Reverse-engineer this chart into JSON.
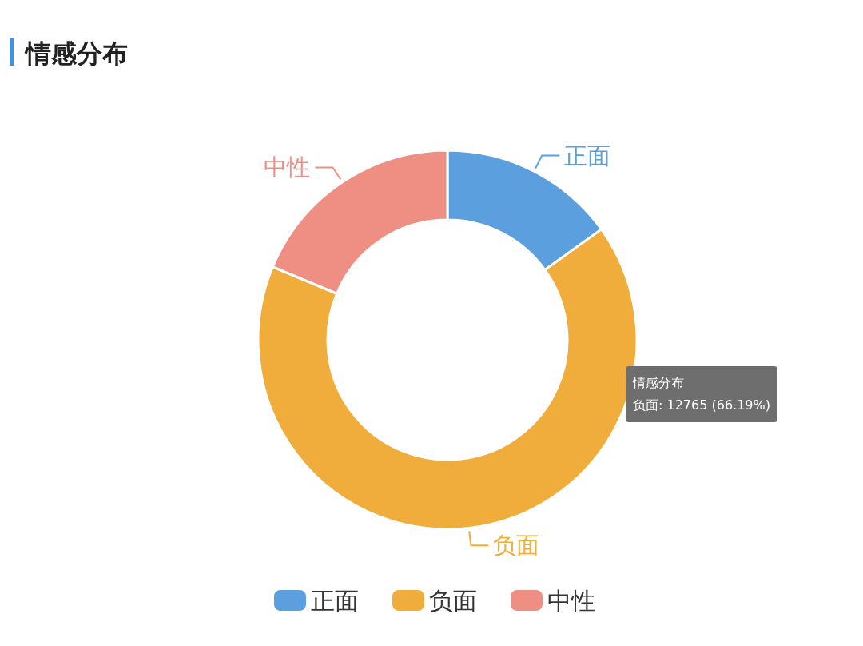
{
  "chart_data": {
    "type": "donut",
    "title": "情感分布",
    "categories": [
      "正面",
      "负面",
      "中性"
    ],
    "values": [
      15.1,
      66.19,
      18.71
    ],
    "colors": [
      "#5b9fdf",
      "#f0ad3c",
      "#ef8f83"
    ],
    "legend": "bottom",
    "annotations": [
      "情感分布",
      "负面: 12765 (66.19%)"
    ]
  }
}
